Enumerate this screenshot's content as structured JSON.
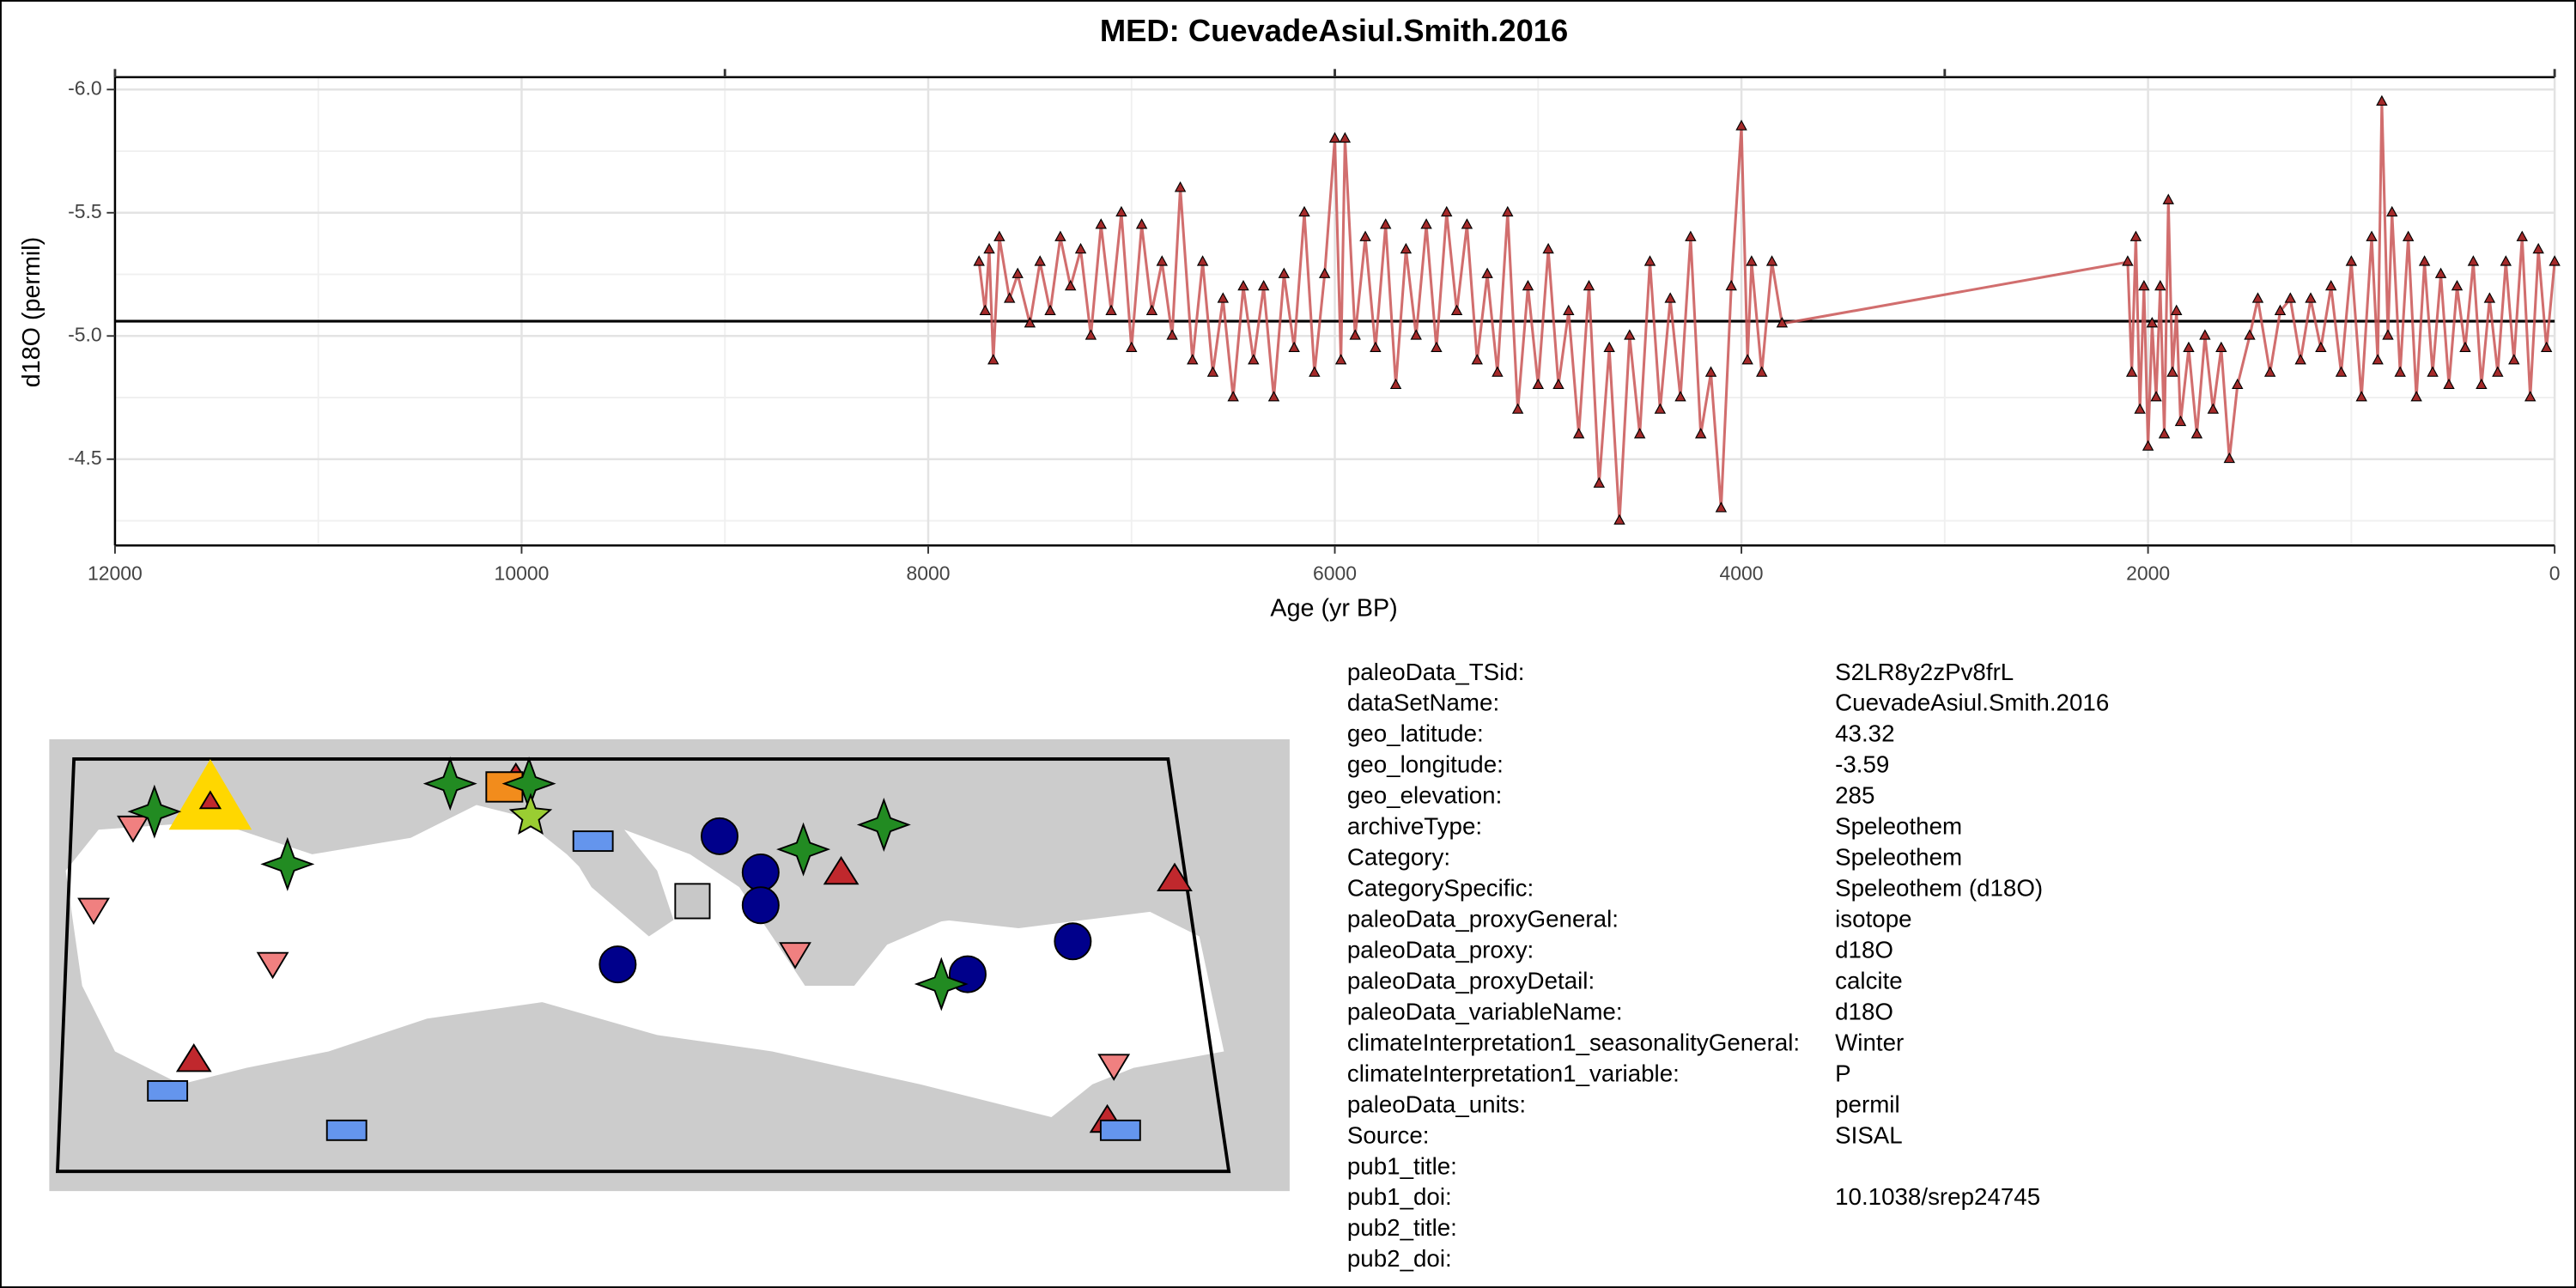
{
  "chart_data": {
    "type": "line",
    "title": "MED: CuevadeAsiul.Smith.2016",
    "xlabel": "Age (yr BP)",
    "ylabel": "d18O (permil)",
    "xlim": [
      12000,
      0
    ],
    "ylim": [
      -4.15,
      -6.05
    ],
    "xticks": [
      12000,
      10000,
      8000,
      6000,
      4000,
      2000,
      0
    ],
    "x2ticks": [
      12000,
      9000,
      6000,
      3000,
      0
    ],
    "xminorticks": [
      11000,
      9000,
      7000,
      5000,
      3000,
      1000
    ],
    "yticks": [
      {
        "value": -6,
        "label": "-6.0"
      },
      -5.5,
      {
        "value": -5,
        "label": "-5.0"
      },
      -4.5
    ],
    "yminorticks": [
      -5.75,
      -5.25,
      -4.75,
      -4.25
    ],
    "grid": true,
    "hline": -5.06,
    "color": "#c95555",
    "marker_color": "#a52a2a",
    "x": [
      7750,
      7720,
      7700,
      7680,
      7650,
      7600,
      7560,
      7500,
      7450,
      7400,
      7350,
      7300,
      7250,
      7200,
      7150,
      7100,
      7050,
      7000,
      6950,
      6900,
      6850,
      6800,
      6760,
      6700,
      6650,
      6600,
      6550,
      6500,
      6450,
      6400,
      6350,
      6300,
      6250,
      6200,
      6150,
      6100,
      6050,
      6000,
      5970,
      5950,
      5900,
      5850,
      5800,
      5750,
      5700,
      5650,
      5600,
      5550,
      5500,
      5450,
      5400,
      5350,
      5300,
      5250,
      5200,
      5150,
      5100,
      5050,
      5000,
      4950,
      4900,
      4850,
      4800,
      4750,
      4700,
      4650,
      4600,
      4550,
      4500,
      4450,
      4400,
      4350,
      4300,
      4250,
      4200,
      4150,
      4100,
      4050,
      4000,
      3970,
      3950,
      3900,
      3850,
      3800,
      2100,
      2080,
      2060,
      2040,
      2020,
      2000,
      1980,
      1960,
      1940,
      1920,
      1900,
      1880,
      1860,
      1840,
      1800,
      1760,
      1720,
      1680,
      1640,
      1600,
      1560,
      1500,
      1460,
      1400,
      1350,
      1300,
      1250,
      1200,
      1150,
      1100,
      1050,
      1000,
      950,
      900,
      870,
      850,
      820,
      800,
      760,
      720,
      680,
      640,
      600,
      560,
      520,
      480,
      440,
      400,
      360,
      320,
      280,
      240,
      200,
      160,
      120,
      80,
      40,
      0
    ],
    "values": [
      -5.3,
      -5.1,
      -5.35,
      -4.9,
      -5.4,
      -5.15,
      -5.25,
      -5.05,
      -5.3,
      -5.1,
      -5.4,
      -5.2,
      -5.35,
      -5.0,
      -5.45,
      -5.1,
      -5.5,
      -4.95,
      -5.45,
      -5.1,
      -5.3,
      -5.0,
      -5.6,
      -4.9,
      -5.3,
      -4.85,
      -5.15,
      -4.75,
      -5.2,
      -4.9,
      -5.2,
      -4.75,
      -5.25,
      -4.95,
      -5.5,
      -4.85,
      -5.25,
      -5.8,
      -4.9,
      -5.8,
      -5.0,
      -5.4,
      -4.95,
      -5.45,
      -4.8,
      -5.35,
      -5.0,
      -5.45,
      -4.95,
      -5.5,
      -5.1,
      -5.45,
      -4.9,
      -5.25,
      -4.85,
      -5.5,
      -4.7,
      -5.2,
      -4.8,
      -5.35,
      -4.8,
      -5.1,
      -4.6,
      -5.2,
      -4.4,
      -4.95,
      -4.25,
      -5.0,
      -4.6,
      -5.3,
      -4.7,
      -5.15,
      -4.75,
      -5.4,
      -4.6,
      -4.85,
      -4.3,
      -5.2,
      -5.85,
      -4.9,
      -5.3,
      -4.85,
      -5.3,
      -5.05,
      -5.3,
      -4.85,
      -5.4,
      -4.7,
      -5.2,
      -4.55,
      -5.05,
      -4.75,
      -5.2,
      -4.6,
      -5.55,
      -4.85,
      -5.1,
      -4.65,
      -4.95,
      -4.6,
      -5.0,
      -4.7,
      -4.95,
      -4.5,
      -4.8,
      -5.0,
      -5.15,
      -4.85,
      -5.1,
      -5.15,
      -4.9,
      -5.15,
      -4.95,
      -5.2,
      -4.85,
      -5.3,
      -4.75,
      -5.4,
      -4.9,
      -5.95,
      -5.0,
      -5.5,
      -4.85,
      -5.4,
      -4.75,
      -5.3,
      -4.85,
      -5.25,
      -4.8,
      -5.2,
      -4.95,
      -5.3,
      -4.8,
      -5.15,
      -4.85,
      -5.3,
      -4.9,
      -5.4,
      -4.75,
      -5.35,
      -4.95,
      -5.3
    ]
  },
  "metadata": [
    {
      "key": "paleoData_TSid:",
      "value": "S2LR8y2zPv8frL"
    },
    {
      "key": "dataSetName:",
      "value": "CuevadeAsiul.Smith.2016"
    },
    {
      "key": "geo_latitude:",
      "value": "43.32"
    },
    {
      "key": "geo_longitude:",
      "value": "-3.59"
    },
    {
      "key": "geo_elevation:",
      "value": "285"
    },
    {
      "key": "archiveType:",
      "value": "Speleothem"
    },
    {
      "key": "Category:",
      "value": "Speleothem"
    },
    {
      "key": "CategorySpecific:",
      "value": "Speleothem (d18O)"
    },
    {
      "key": "paleoData_proxyGeneral:",
      "value": "isotope"
    },
    {
      "key": "paleoData_proxy:",
      "value": "d18O"
    },
    {
      "key": "paleoData_proxyDetail:",
      "value": "calcite"
    },
    {
      "key": "paleoData_variableName:",
      "value": "d18O"
    },
    {
      "key": "climateInterpretation1_seasonalityGeneral:",
      "value": "Winter"
    },
    {
      "key": "climateInterpretation1_variable:",
      "value": "P"
    },
    {
      "key": "paleoData_units:",
      "value": "permil"
    },
    {
      "key": "Source:",
      "value": "SISAL"
    },
    {
      "key": "pub1_title:"
    },
    {
      "key": "pub1_doi:",
      "value": "10.1038/srep24745"
    },
    {
      "key": "pub2_title:"
    },
    {
      "key": "pub2_doi:"
    }
  ]
}
